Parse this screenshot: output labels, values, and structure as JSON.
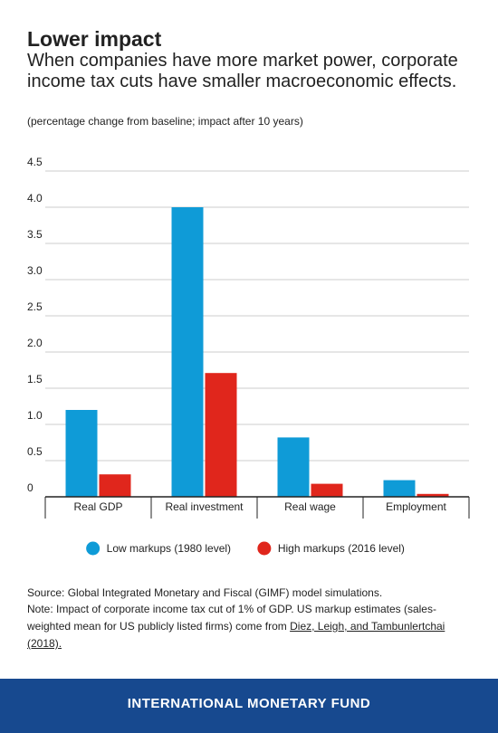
{
  "chart_data": {
    "type": "bar",
    "title": "Lower impact",
    "subtitle": "When companies have more market power, corporate income tax cuts have smaller macroeconomic effects.",
    "units_note": "(percentage change from baseline; impact after 10 years)",
    "categories": [
      "Real GDP",
      "Real investment",
      "Real wage",
      "Employment"
    ],
    "series": [
      {
        "name": "Low markups (1980 level)",
        "color": "#0f9bd7",
        "values": [
          1.2,
          4.0,
          0.82,
          0.23
        ]
      },
      {
        "name": "High markups (2016 level)",
        "color": "#e0261c",
        "values": [
          0.31,
          1.71,
          0.18,
          0.04
        ]
      }
    ],
    "ylim": [
      0,
      4.5
    ],
    "yticks": [
      0,
      0.5,
      {
        "value": 1,
        "label": "1.0"
      },
      1.5,
      {
        "value": 2,
        "label": "2.0"
      },
      2.5,
      {
        "value": 3,
        "label": "3.0"
      },
      3.5,
      {
        "value": 4,
        "label": "4.0"
      },
      4.5
    ],
    "grid": true,
    "legend": "bottom",
    "source": "Source:  Global Integrated Monetary and Fiscal (GIMF) model simulations.",
    "note": "Note: Impact of corporate income tax cut of 1% of GDP. US markup estimates (sales-weighted mean for US publicly listed firms) come from",
    "note_link": "Diez, Leigh, and Tambunlertchai (2018).",
    "footer": "INTERNATIONAL MONETARY FUND"
  }
}
